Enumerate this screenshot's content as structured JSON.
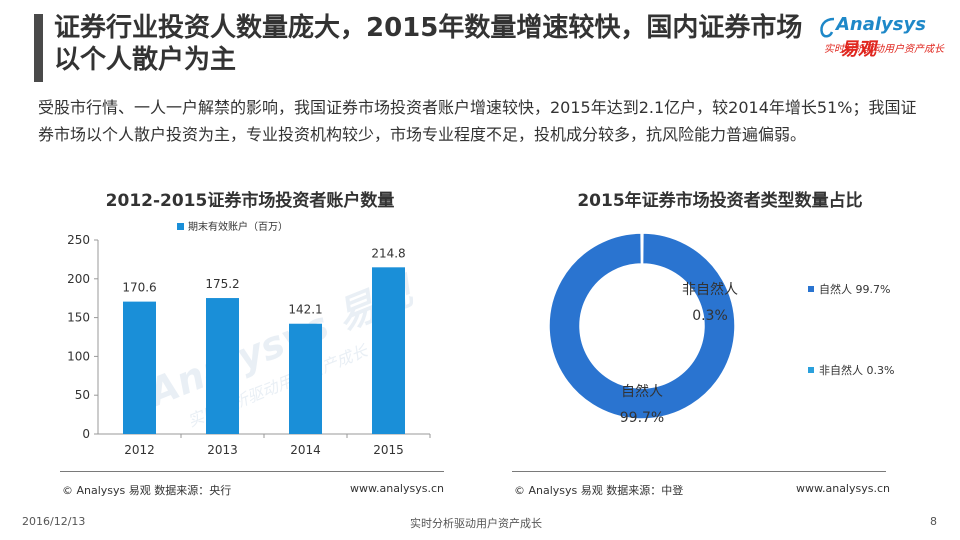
{
  "header": {
    "title": "证券行业投资人数量庞大，2015年数量增速较快，国内证券市场以个人散户为主"
  },
  "logo": {
    "brand_en": "Analysys",
    "brand_cn": "易观",
    "slogan": "实时分析驱动用户资产成长",
    "colors": {
      "blue": "#1e88c8",
      "red": "#e0261e"
    }
  },
  "description": "受股市行情、一人一户解禁的影响，我国证券市场投资者账户增速较快，2015年达到2.1亿户，较2014年增长51%；我国证券市场以个人散户投资为主，专业投资机构较少，市场专业程度不足，投机成分较多，抗风险能力普遍偏弱。",
  "chart_data": [
    {
      "type": "bar",
      "title": "2012-2015证券市场投资者账户数量",
      "legend": "期末有效账户（百万）",
      "categories": [
        "2012",
        "2013",
        "2014",
        "2015"
      ],
      "values": [
        170.6,
        175.2,
        142.1,
        214.8
      ],
      "labels": [
        "170.6",
        "175.2",
        "142.1",
        "214.8"
      ],
      "yticks": [
        "0",
        "50",
        "100",
        "150",
        "200",
        "250"
      ],
      "ylim": [
        0,
        250
      ],
      "color": "#1a8fd8",
      "watermark": "Analysys 易观",
      "watermark_slogan": "实时分析驱动用户资产成长"
    },
    {
      "type": "pie",
      "title": "2015年证券市场投资者类型数量占比",
      "slices": [
        {
          "name": "自然人",
          "value": 99.7,
          "label_name": "自然人",
          "label_value": "99.7%",
          "legend": "自然人 99.7%",
          "color": "#2a74d0"
        },
        {
          "name": "非自然人",
          "value": 0.3,
          "label_name": "非自然人",
          "label_value": "0.3%",
          "legend": "非自然人 0.3%",
          "color": "#2aa0dc"
        }
      ]
    }
  ],
  "footer": {
    "left_source": "© Analysys 易观   数据来源：央行",
    "left_site": "www.analysys.cn",
    "right_source": "© Analysys 易观   数据来源：中登",
    "right_site": "www.analysys.cn"
  },
  "bottom": {
    "date": "2016/12/13",
    "slogan": "实时分析驱动用户资产成长",
    "page": "8"
  }
}
